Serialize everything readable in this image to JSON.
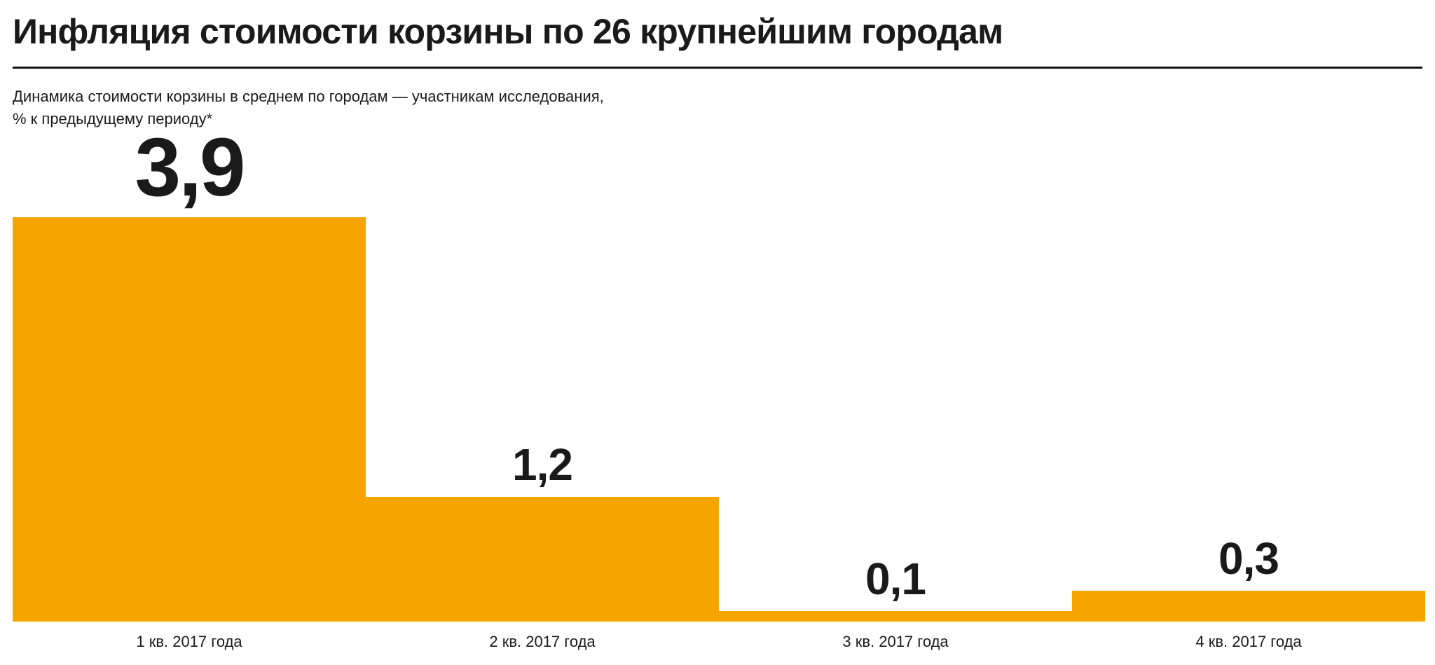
{
  "chart_data": {
    "type": "bar",
    "title": "Инфляция стоимости корзины по 26 крупнейшим городам",
    "subtitle_line1": "Динамика стоимости корзины в среднем по городам — участникам исследования,",
    "subtitle_line2": "% к предыдущему периоду*",
    "categories": [
      "1 кв. 2017 года",
      "2 кв. 2017 года",
      "3 кв. 2017 года",
      "4 кв. 2017 года"
    ],
    "values": [
      3.9,
      1.2,
      0.1,
      0.3
    ],
    "value_labels": [
      "3,9",
      "1,2",
      "0,1",
      "0,3"
    ],
    "bar_color": "#F6A500",
    "text_color": "#1a1a1a",
    "xlabel": "",
    "ylabel": "% к предыдущему периоду",
    "ylim": [
      0,
      3.9
    ],
    "grid": false,
    "legend": "none"
  }
}
